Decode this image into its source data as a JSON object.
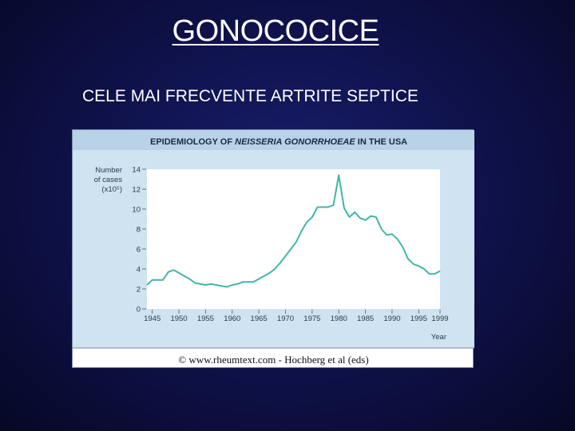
{
  "slide": {
    "title": "GONOCOCICE",
    "subtitle": "CELE MAI FRECVENTE ARTRITE SEPTICE",
    "caption": "© www.rheumtext.com - Hochberg et al (eds)"
  },
  "colors": {
    "background": "#10134e",
    "figure_header": "#b8d3e8",
    "figure_panel": "#cfe3f1",
    "plot_area": "#ffffff",
    "line": "#3fb6a8"
  },
  "chart_data": {
    "type": "line",
    "title_prefix": "EPIDEMIOLOGY OF",
    "title_italic": "NEISSERIA GONORRHOEAE",
    "title_suffix": "IN THE USA",
    "ylabel_lines": [
      "Number",
      "of cases",
      "(x10⁵)"
    ],
    "xlabel": "Year",
    "xlim": [
      1944,
      1999
    ],
    "ylim": [
      0,
      14
    ],
    "yticks": [
      0,
      2,
      4,
      6,
      8,
      10,
      12,
      14
    ],
    "xticks": [
      1945,
      1950,
      1955,
      1960,
      1965,
      1970,
      1975,
      1980,
      1985,
      1990,
      1995,
      1999
    ],
    "grid": false,
    "series": [
      {
        "x": [
          1944,
          1945,
          1946,
          1947,
          1948,
          1949,
          1950,
          1951,
          1952,
          1953,
          1954,
          1955,
          1956,
          1957,
          1958,
          1959,
          1960,
          1961,
          1962,
          1963,
          1964,
          1965,
          1966,
          1967,
          1968,
          1969,
          1970,
          1971,
          1972,
          1973,
          1974,
          1975,
          1976,
          1977,
          1978,
          1979,
          1980,
          1981,
          1982,
          1983,
          1984,
          1985,
          1986,
          1987,
          1988,
          1989,
          1990,
          1991,
          1992,
          1993,
          1994,
          1995,
          1996,
          1997,
          1998,
          1999
        ],
        "y": [
          2.4,
          2.9,
          2.9,
          2.9,
          3.7,
          3.9,
          3.6,
          3.3,
          3.0,
          2.6,
          2.5,
          2.4,
          2.5,
          2.4,
          2.3,
          2.2,
          2.4,
          2.5,
          2.7,
          2.7,
          2.7,
          3.0,
          3.3,
          3.6,
          4.0,
          4.6,
          5.3,
          6.0,
          6.7,
          7.8,
          8.7,
          9.2,
          10.2,
          10.2,
          10.2,
          10.4,
          13.4,
          10.1,
          9.2,
          9.7,
          9.1,
          8.9,
          9.3,
          9.2,
          8.0,
          7.4,
          7.5,
          7.0,
          6.2,
          5.0,
          4.5,
          4.3,
          4.0,
          3.5,
          3.5,
          3.8
        ]
      }
    ]
  }
}
